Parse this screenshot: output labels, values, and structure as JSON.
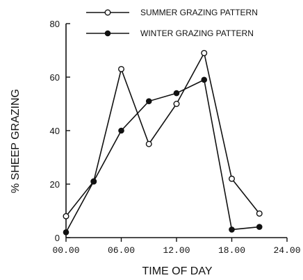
{
  "chart_data": {
    "type": "line",
    "title": "",
    "xlabel": "TIME OF DAY",
    "ylabel": "% SHEEP GRAZING",
    "xlim": [
      0,
      24
    ],
    "ylim": [
      0,
      80
    ],
    "x_ticks": [
      0,
      6,
      12,
      18,
      24
    ],
    "x_tick_labels": [
      "00.00",
      "06.00",
      "12.00",
      "18.00",
      "24.00"
    ],
    "y_ticks": [
      0,
      20,
      40,
      60,
      80
    ],
    "y_tick_labels": [
      "0",
      "20",
      "40",
      "60",
      "80"
    ],
    "grid": false,
    "legend_position": "top-right",
    "series": [
      {
        "name": "SUMMER GRAZING PATTERN",
        "marker": "open-circle",
        "x": [
          0,
          3,
          6,
          9,
          12,
          15,
          18,
          21
        ],
        "y": [
          8,
          21,
          63,
          35,
          50,
          69,
          22,
          9
        ]
      },
      {
        "name": "WINTER GRAZING PATTERN",
        "marker": "filled-circle",
        "x": [
          0,
          3,
          6,
          9,
          12,
          15,
          18,
          21
        ],
        "y": [
          2,
          21,
          40,
          51,
          54,
          59,
          3,
          4
        ]
      }
    ]
  }
}
